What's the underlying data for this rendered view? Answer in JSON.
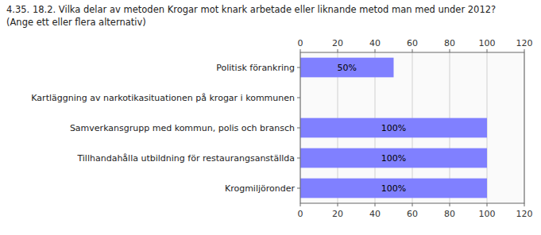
{
  "chart_data": {
    "type": "bar",
    "orientation": "horizontal",
    "title": "4.35. 18.2. Vilka delar av metoden Krogar mot knark arbetade eller liknande metod man med under 2012?",
    "subtitle": "(Ange ett eller flera alternativ)",
    "categories": [
      "Krogmiljöronder",
      "Tillhandahålla utbildning för restaurangsanställda",
      "Samverkansgrupp med kommun, polis och bransch",
      "Kartläggning av narkotikasituationen på krogar i kommunen",
      "Politisk förankring"
    ],
    "values": [
      100,
      100,
      100,
      0,
      50
    ],
    "value_labels": [
      "100%",
      "100%",
      "100%",
      null,
      "50%"
    ],
    "data_labels": true,
    "color": "#8080FF",
    "xlim": [
      0,
      120
    ],
    "xticks": [
      0,
      20,
      40,
      60,
      80,
      100,
      120
    ],
    "grid": true
  }
}
